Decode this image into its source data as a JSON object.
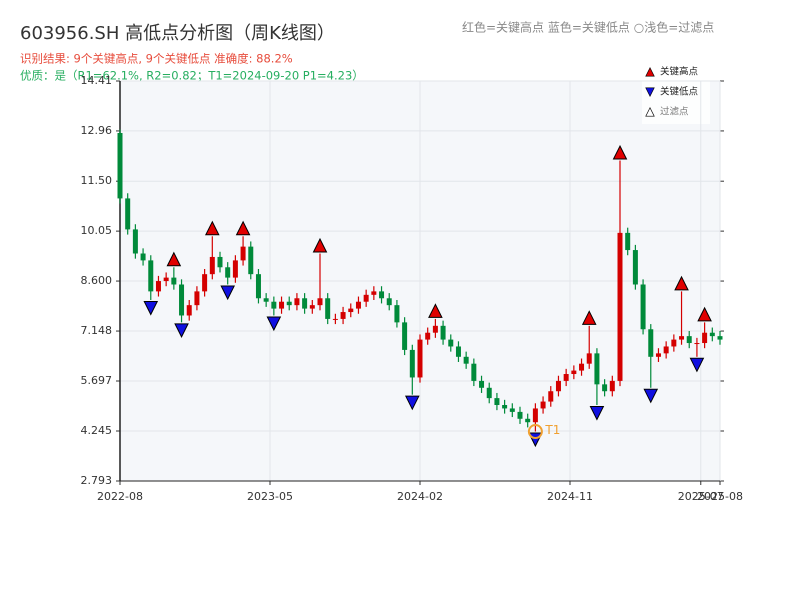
{
  "chart_data": {
    "type": "candlestick",
    "title": "603956.SH 高低点分析图（周K线图）",
    "subtitle": "识别结果: 9个关键高点, 9个关键低点  准确度: 88.2%",
    "quality_note": "优质：是（R1=62.1%, R2=0.82；T1=2024-09-20 P1=4.23）",
    "color_note": "红色=关键高点    蓝色=关键低点   ○浅色=过滤点",
    "up_color": "#d40000",
    "down_color": "#008a3a",
    "grid": true,
    "xlim": [
      0,
      156
    ],
    "xticks": [
      {
        "value": 0,
        "label": "2022-08"
      },
      {
        "value": 39,
        "label": "2023-05"
      },
      {
        "value": 78,
        "label": "2024-02"
      },
      {
        "value": 117,
        "label": "2024-11"
      },
      {
        "value": 151,
        "label": "2025-07"
      },
      {
        "value": 156,
        "label": "2025-08"
      }
    ],
    "ylim": [
      2.793,
      14.41
    ],
    "yticks": [
      2.793,
      4.245,
      5.697,
      7.148,
      {
        "value": 8.6,
        "label": "8.600"
      },
      10.05,
      {
        "value": 11.5,
        "label": "11.50"
      },
      12.96,
      14.41
    ],
    "candles": {
      "x": [
        0,
        2,
        4,
        6,
        8,
        10,
        12,
        14,
        16,
        18,
        20,
        22,
        24,
        26,
        28,
        30,
        32,
        34,
        36,
        38,
        40,
        42,
        44,
        46,
        48,
        50,
        52,
        54,
        56,
        58,
        60,
        62,
        64,
        66,
        68,
        70,
        72,
        74,
        76,
        78,
        80,
        82,
        84,
        86,
        88,
        90,
        92,
        94,
        96,
        98,
        100,
        102,
        104,
        106,
        108,
        110,
        112,
        114,
        116,
        118,
        120,
        122,
        124,
        126,
        128,
        130,
        132,
        134,
        136,
        138,
        140,
        142,
        144,
        146,
        148,
        150,
        152,
        154,
        156
      ],
      "open": [
        12.9,
        11.0,
        10.1,
        9.4,
        9.2,
        8.3,
        8.6,
        8.7,
        8.5,
        7.6,
        7.9,
        8.3,
        8.8,
        9.3,
        9.0,
        8.7,
        9.2,
        9.6,
        8.8,
        8.1,
        8.0,
        7.8,
        8.0,
        7.9,
        8.1,
        7.8,
        7.9,
        8.1,
        7.5,
        7.5,
        7.7,
        7.8,
        8.0,
        8.2,
        8.3,
        8.1,
        7.9,
        7.4,
        6.6,
        5.8,
        6.9,
        7.1,
        7.3,
        6.9,
        6.7,
        6.4,
        6.2,
        5.7,
        5.5,
        5.2,
        5.0,
        4.9,
        4.8,
        4.6,
        4.5,
        4.9,
        5.1,
        5.4,
        5.7,
        5.9,
        6.0,
        6.2,
        6.5,
        5.6,
        5.4,
        5.7,
        10.0,
        9.5,
        8.5,
        7.2,
        6.4,
        6.5,
        6.7,
        6.9,
        7.0,
        6.8,
        6.8,
        7.1,
        7.0
      ],
      "high": [
        13.0,
        11.15,
        10.25,
        9.55,
        9.35,
        8.75,
        8.85,
        9.0,
        8.65,
        8.05,
        8.45,
        8.95,
        9.9,
        9.45,
        9.15,
        9.35,
        9.9,
        9.75,
        8.95,
        8.25,
        8.15,
        8.15,
        8.15,
        8.25,
        8.25,
        8.05,
        9.4,
        8.25,
        7.65,
        7.85,
        7.95,
        8.15,
        8.35,
        8.45,
        8.45,
        8.25,
        8.05,
        7.55,
        6.75,
        7.05,
        7.25,
        7.5,
        7.45,
        7.05,
        6.85,
        6.55,
        6.35,
        5.85,
        5.65,
        5.35,
        5.15,
        5.05,
        4.95,
        4.75,
        5.05,
        5.25,
        5.55,
        5.85,
        6.05,
        6.15,
        6.35,
        7.3,
        6.65,
        5.75,
        5.85,
        12.1,
        10.15,
        9.65,
        8.65,
        7.35,
        6.65,
        6.85,
        7.05,
        8.3,
        7.15,
        6.95,
        7.4,
        7.25,
        7.15
      ],
      "low": [
        10.85,
        9.95,
        9.25,
        9.05,
        8.05,
        8.15,
        8.45,
        8.35,
        7.4,
        7.45,
        7.75,
        8.15,
        8.65,
        8.85,
        8.5,
        8.55,
        9.05,
        8.65,
        7.95,
        7.85,
        7.6,
        7.65,
        7.75,
        7.75,
        7.65,
        7.65,
        7.75,
        7.35,
        7.35,
        7.35,
        7.55,
        7.65,
        7.85,
        8.05,
        7.95,
        7.75,
        7.25,
        6.45,
        5.3,
        5.65,
        6.75,
        6.95,
        6.75,
        6.55,
        6.25,
        6.05,
        5.55,
        5.35,
        5.05,
        4.85,
        4.75,
        4.65,
        4.45,
        4.35,
        4.23,
        4.75,
        4.95,
        5.25,
        5.55,
        5.75,
        5.85,
        6.05,
        5.0,
        5.25,
        5.25,
        5.55,
        9.35,
        8.35,
        7.05,
        5.5,
        6.25,
        6.35,
        6.55,
        6.75,
        6.65,
        6.4,
        6.65,
        6.85,
        6.75
      ],
      "close": [
        11.0,
        10.1,
        9.4,
        9.2,
        8.3,
        8.6,
        8.7,
        8.5,
        7.6,
        7.9,
        8.3,
        8.8,
        9.3,
        9.0,
        8.7,
        9.2,
        9.6,
        8.8,
        8.1,
        8.0,
        7.8,
        8.0,
        7.9,
        8.1,
        7.8,
        7.9,
        8.1,
        7.5,
        7.5,
        7.7,
        7.8,
        8.0,
        8.2,
        8.3,
        8.1,
        7.9,
        7.4,
        6.6,
        5.8,
        6.9,
        7.1,
        7.3,
        6.9,
        6.7,
        6.4,
        6.2,
        5.7,
        5.5,
        5.2,
        5.0,
        4.9,
        4.8,
        4.6,
        4.5,
        4.9,
        5.1,
        5.4,
        5.7,
        5.9,
        6.0,
        6.2,
        6.5,
        5.6,
        5.4,
        5.7,
        10.0,
        9.5,
        8.5,
        7.2,
        6.4,
        6.5,
        6.7,
        6.9,
        7.0,
        6.8,
        6.8,
        7.1,
        7.0,
        6.9
      ]
    },
    "key_highs": {
      "name": "关键高点",
      "color": "#e00000",
      "x": [
        14,
        24,
        32,
        52,
        82,
        122,
        130,
        146,
        152
      ],
      "values": [
        9.0,
        9.9,
        9.9,
        9.4,
        7.5,
        7.3,
        12.1,
        8.3,
        7.4
      ]
    },
    "key_lows": {
      "name": "关键低点",
      "color": "#1010e0",
      "x": [
        8,
        16,
        28,
        40,
        76,
        108,
        124,
        138,
        150
      ],
      "values": [
        8.05,
        7.4,
        8.5,
        7.6,
        5.3,
        4.23,
        5.0,
        5.5,
        6.4
      ]
    },
    "filtered": {
      "name": "过滤点",
      "color": "#ffffff"
    },
    "t1": {
      "label": "T1",
      "x": 108,
      "value": 4.23,
      "color": "#f0a030"
    }
  }
}
